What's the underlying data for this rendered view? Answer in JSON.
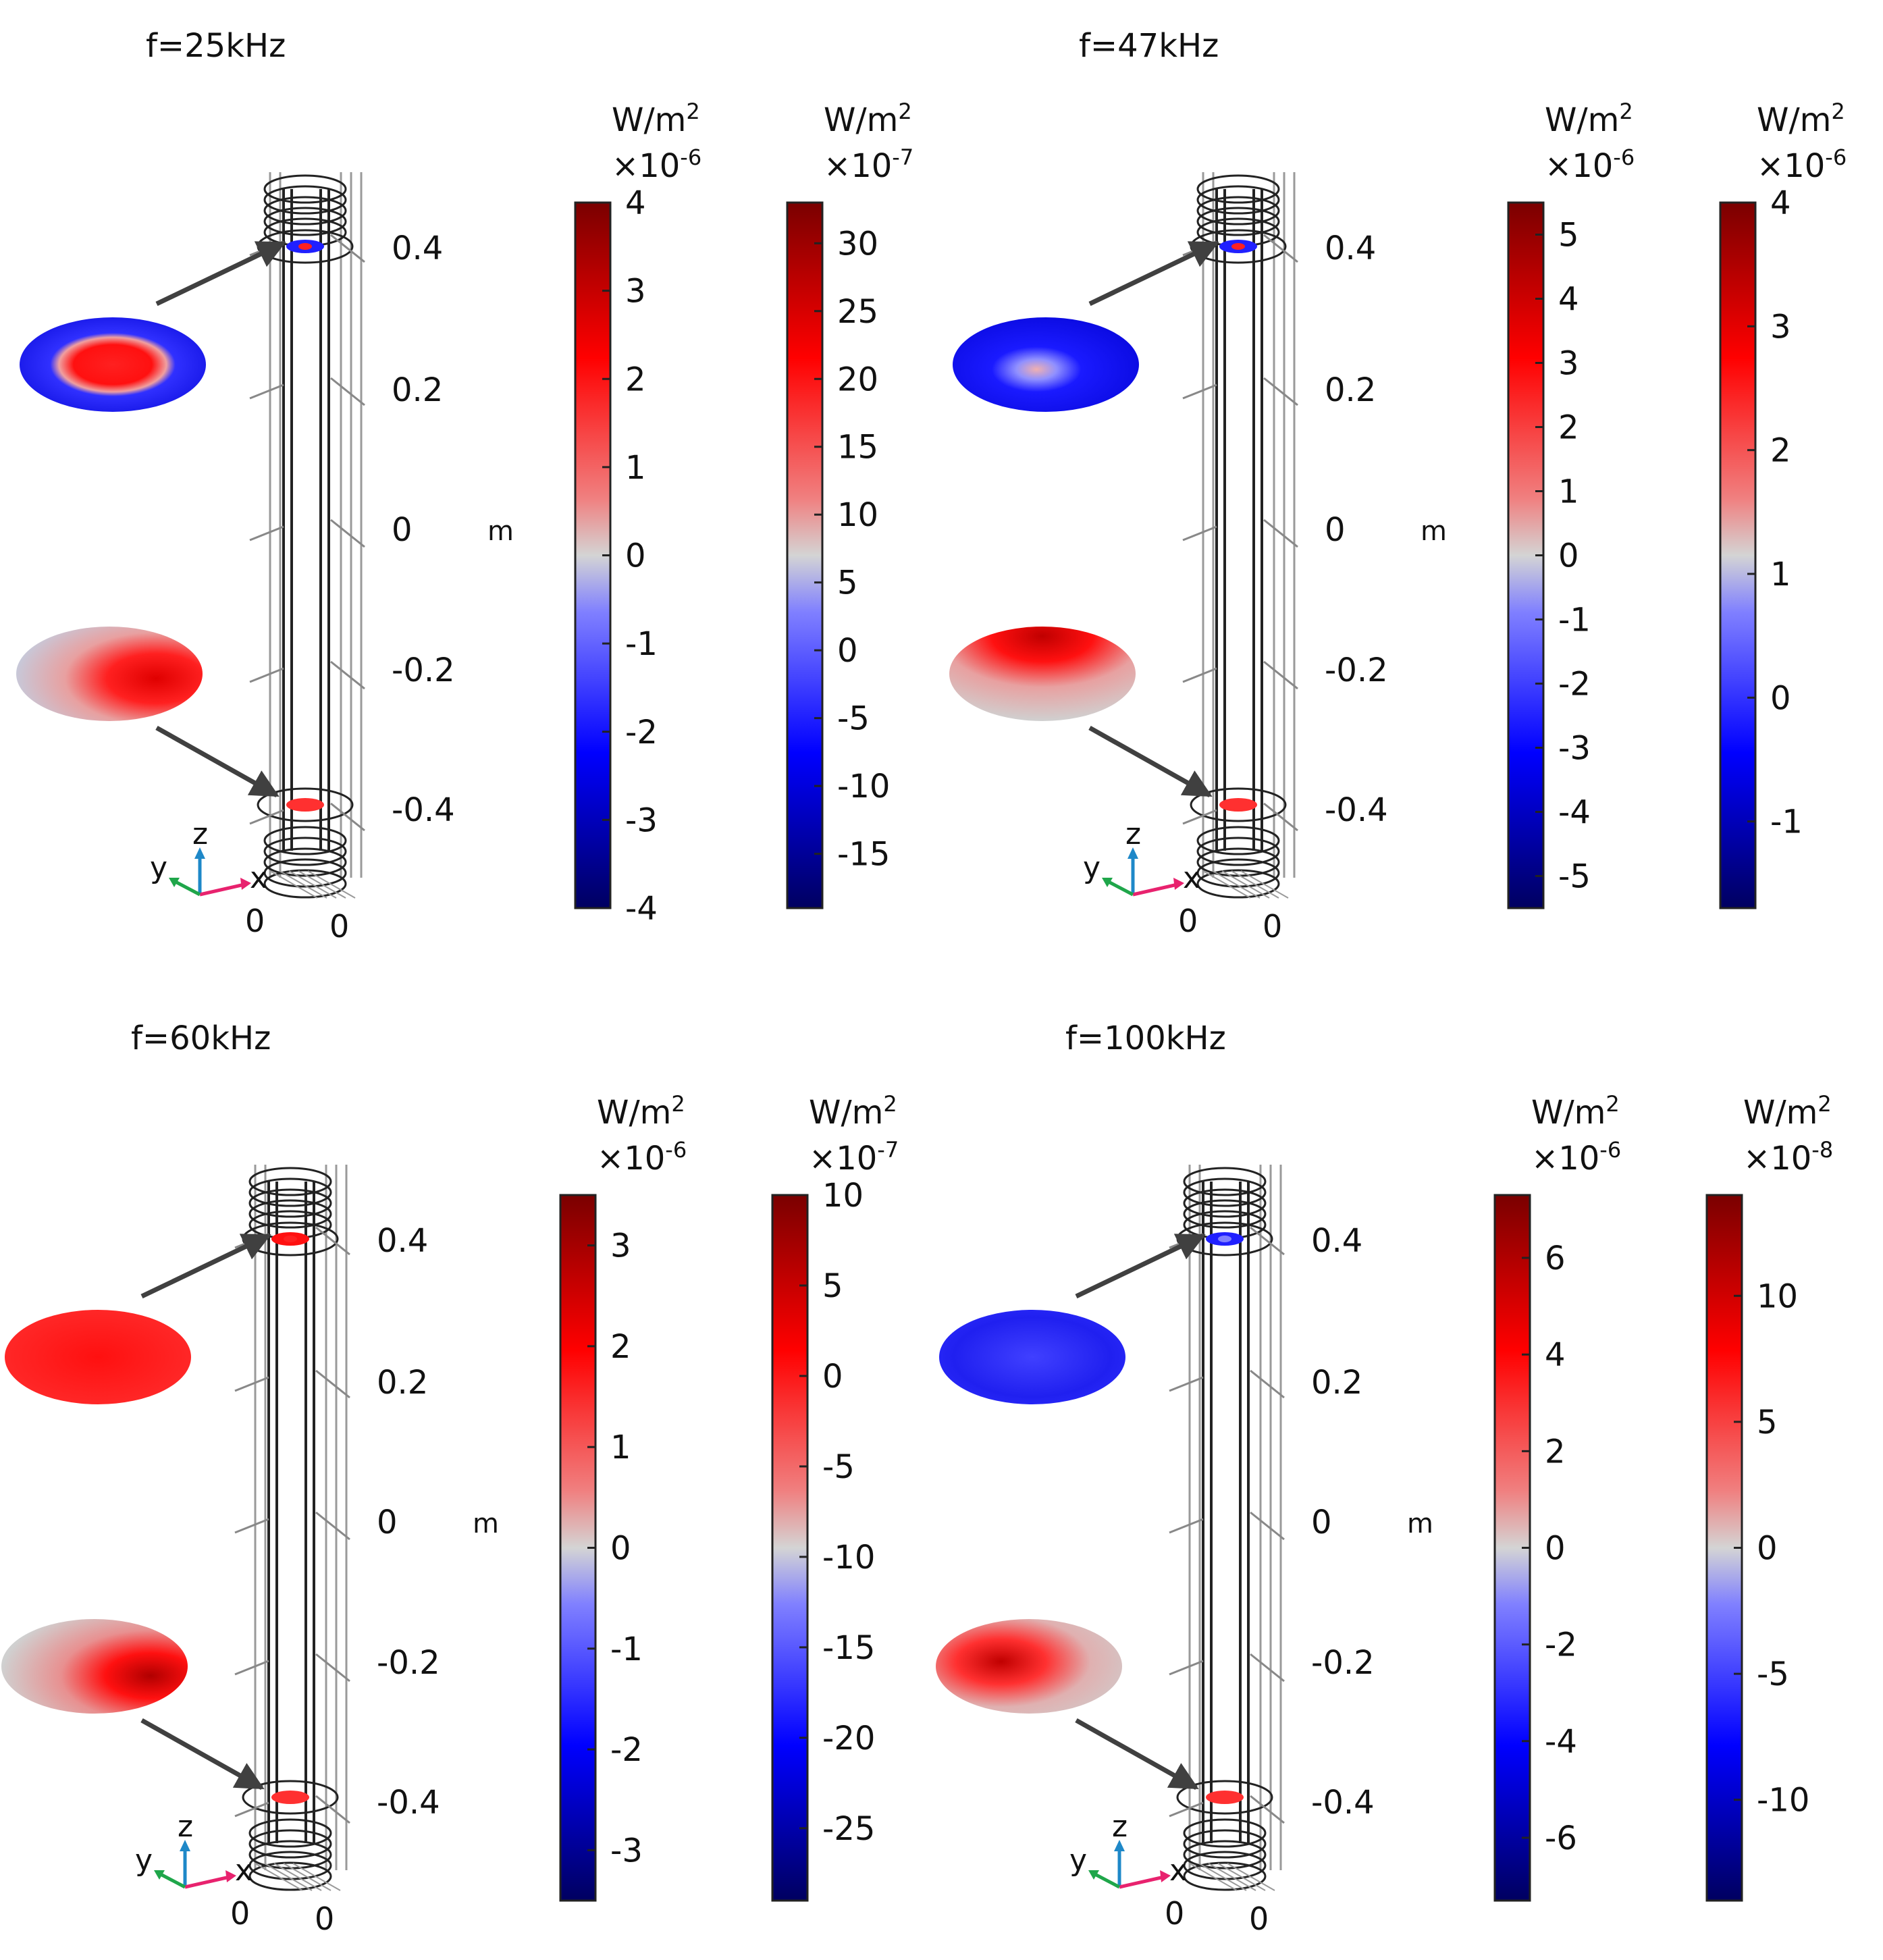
{
  "axis_unit": "m",
  "z_ticks": [
    "0.4",
    "0.2",
    "0",
    "-0.2",
    "-0.4"
  ],
  "origin_ticks": [
    "0",
    "0"
  ],
  "axis_letters": {
    "x": "x",
    "y": "y",
    "z": "z"
  },
  "colors": {
    "deep_red": "#7a0000",
    "red": "#ff0000",
    "light_red": "#f08080",
    "grey": "#d4d4d4",
    "light_blue": "#8080ff",
    "blue": "#0000ff",
    "deep_blue": "#000060",
    "axis_x": "#e8226e",
    "axis_y": "#1fa64a",
    "axis_z": "#1e88c8"
  },
  "panels": [
    {
      "title": "f=25kHz",
      "top_disk": {
        "pattern": "band-blue-outer",
        "level_hint": "strong red center"
      },
      "bottom_disk": {
        "pattern": "red-grey-gradient"
      },
      "colorbars": [
        {
          "unit": "W/m",
          "power": "2",
          "scale_base": "×10",
          "scale_exp": "-6",
          "min": -4,
          "max": 4,
          "ticks": [
            "4",
            "3",
            "2",
            "1",
            "0",
            "-1",
            "-2",
            "-3",
            "-4"
          ],
          "tick_values": [
            4,
            3,
            2,
            1,
            0,
            -1,
            -2,
            -3,
            -4
          ]
        },
        {
          "unit": "W/m",
          "power": "2",
          "scale_base": "×10",
          "scale_exp": "-7",
          "min": -19,
          "max": 33,
          "ticks": [
            "30",
            "25",
            "20",
            "15",
            "10",
            "5",
            "0",
            "-5",
            "-10",
            "-15"
          ],
          "tick_values": [
            30,
            25,
            20,
            15,
            10,
            5,
            0,
            -5,
            -10,
            -15
          ]
        }
      ]
    },
    {
      "title": "f=47kHz",
      "top_disk": {
        "pattern": "blue-with-red-spot"
      },
      "bottom_disk": {
        "pattern": "red-top-grey"
      },
      "colorbars": [
        {
          "unit": "W/m",
          "power": "2",
          "scale_base": "×10",
          "scale_exp": "-6",
          "min": -5.5,
          "max": 5.5,
          "ticks": [
            "5",
            "4",
            "3",
            "2",
            "1",
            "0",
            "-1",
            "-2",
            "-3",
            "-4",
            "-5"
          ],
          "tick_values": [
            5,
            4,
            3,
            2,
            1,
            0,
            -1,
            -2,
            -3,
            -4,
            -5
          ]
        },
        {
          "unit": "W/m",
          "power": "2",
          "scale_base": "×10",
          "scale_exp": "-6",
          "min": -1.7,
          "max": 4,
          "ticks": [
            "4",
            "3",
            "2",
            "1",
            "0",
            "-1"
          ],
          "tick_values": [
            4,
            3,
            2,
            1,
            0,
            -1
          ]
        }
      ]
    },
    {
      "title": "f=60kHz",
      "top_disk": {
        "pattern": "red-mottled"
      },
      "bottom_disk": {
        "pattern": "red-grey-streak"
      },
      "colorbars": [
        {
          "unit": "W/m",
          "power": "2",
          "scale_base": "×10",
          "scale_exp": "-6",
          "min": -3.5,
          "max": 3.5,
          "ticks": [
            "3",
            "2",
            "1",
            "0",
            "-1",
            "-2",
            "-3"
          ],
          "tick_values": [
            3,
            2,
            1,
            0,
            -1,
            -2,
            -3
          ]
        },
        {
          "unit": "W/m",
          "power": "2",
          "scale_base": "×10",
          "scale_exp": "-7",
          "min": -29,
          "max": 10,
          "ticks": [
            "10",
            "5",
            "0",
            "-5",
            "-10",
            "-15",
            "-20",
            "-25"
          ],
          "tick_values": [
            10,
            5,
            0,
            -5,
            -10,
            -15,
            -20,
            -25
          ]
        }
      ]
    },
    {
      "title": "f=100kHz",
      "top_disk": {
        "pattern": "blue-mottled"
      },
      "bottom_disk": {
        "pattern": "grey-red-mottled"
      },
      "colorbars": [
        {
          "unit": "W/m",
          "power": "2",
          "scale_base": "×10",
          "scale_exp": "-6",
          "min": -7.3,
          "max": 7.3,
          "ticks": [
            "6",
            "4",
            "2",
            "0",
            "-2",
            "-4",
            "-6"
          ],
          "tick_values": [
            6,
            4,
            2,
            0,
            -2,
            -4,
            -6
          ]
        },
        {
          "unit": "W/m",
          "power": "2",
          "scale_base": "×10",
          "scale_exp": "-8",
          "min": -14,
          "max": 14,
          "ticks": [
            "10",
            "5",
            "0",
            "-5",
            "-10"
          ],
          "tick_values": [
            10,
            5,
            0,
            -5,
            -10
          ]
        }
      ]
    }
  ]
}
